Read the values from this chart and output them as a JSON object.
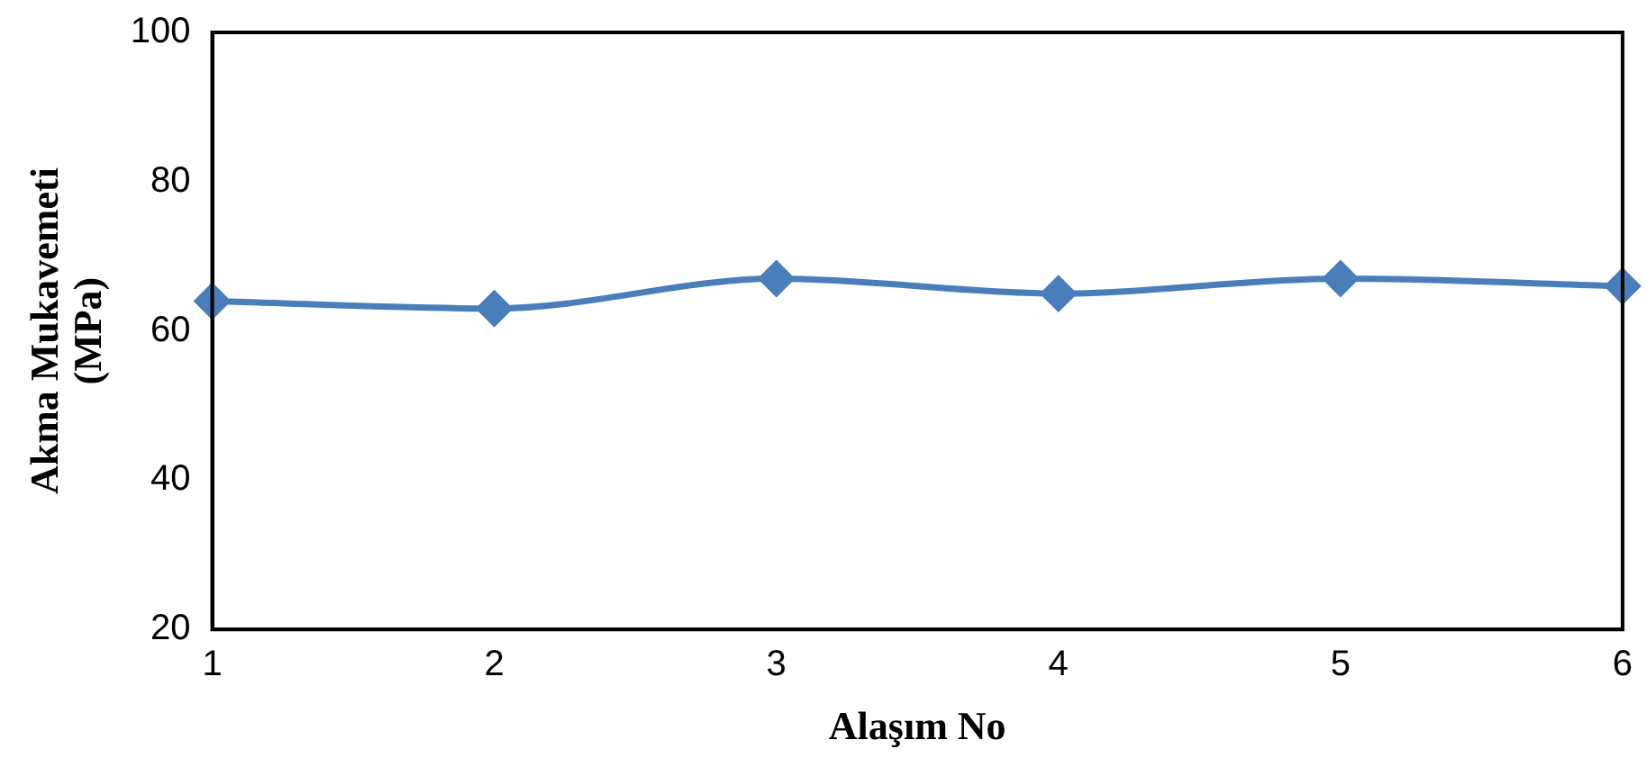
{
  "chart_data": {
    "type": "line",
    "xlabel": "Alaşım No",
    "ylabel": "Akma Mukavemeti (MPa)",
    "x": [
      1,
      2,
      3,
      4,
      5,
      6
    ],
    "series": [
      {
        "color": "#4a7ebb",
        "values": [
          64,
          63,
          67,
          65,
          67,
          66
        ]
      }
    ],
    "xlim": [
      1,
      6
    ],
    "xticks": [
      1,
      2,
      3,
      4,
      5,
      6
    ],
    "ylim": [
      20,
      100
    ],
    "yticks": [
      20,
      40,
      60,
      80,
      100
    ],
    "grid": false,
    "legend": false,
    "marker": "diamond",
    "line_style": "solid"
  }
}
